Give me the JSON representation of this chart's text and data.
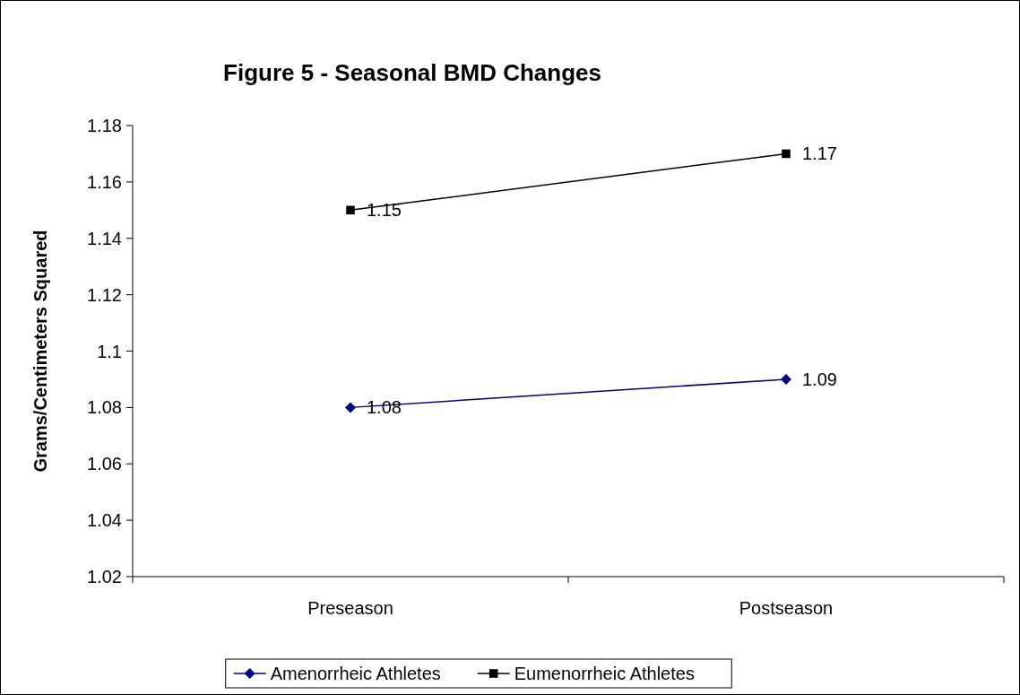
{
  "chart_data": {
    "type": "line",
    "title": "Figure 5 - Seasonal BMD Changes",
    "ylabel": "Grams/Centimeters Squared",
    "categories": [
      "Preseason",
      "Postseason"
    ],
    "series": [
      {
        "name": "Amenorrheic Athletes",
        "color": "#000080",
        "values": [
          1.08,
          1.09
        ],
        "marker": "diamond"
      },
      {
        "name": "Eumenorrheic Athletes",
        "color": "#000000",
        "values": [
          1.15,
          1.17
        ],
        "marker": "square"
      }
    ],
    "ylim": [
      1.02,
      1.18
    ],
    "yticks": [
      1.02,
      1.04,
      1.06,
      1.08,
      {
        "value": 1.1,
        "label": "1.1"
      },
      1.12,
      1.14,
      1.16,
      1.18
    ],
    "grid": false,
    "legend": "bottom",
    "data_labels": true
  }
}
